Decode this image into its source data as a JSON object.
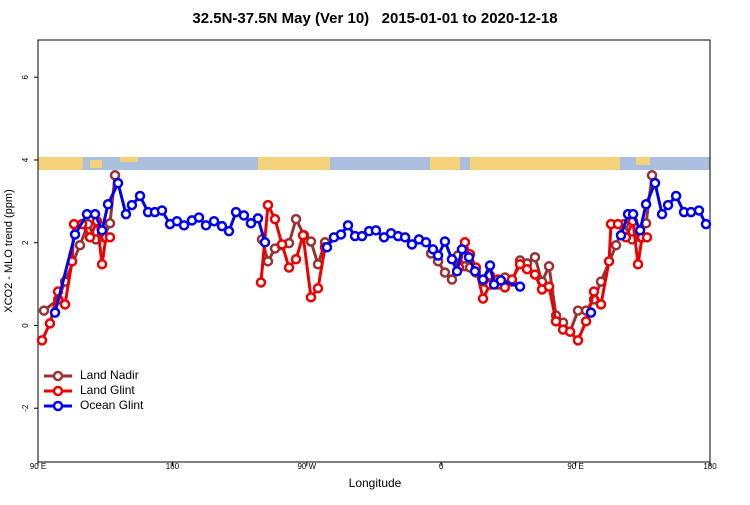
{
  "chart_data": {
    "type": "line",
    "title": "32.5N-37.5N May (Ver 10)   2015-01-01 to 2020-12-18",
    "xlabel": "Longitude",
    "ylabel": "XCO2 - MLO trend (ppm)",
    "xlim": [
      90,
      540
    ],
    "xticks": [
      {
        "value": 90,
        "label": "90 E"
      },
      180,
      {
        "value": 270,
        "label": "90 W"
      },
      {
        "value": 360,
        "label": "0"
      },
      {
        "value": 450,
        "label": "90 E"
      },
      {
        "value": 540,
        "label": "180"
      }
    ],
    "ylim": [
      -3.3,
      6.9
    ],
    "yticks": [
      -2,
      0,
      2,
      4,
      6
    ],
    "legend": "bottom-left",
    "series": [
      {
        "name": "Land Nadir",
        "color": "#993333",
        "x": [
          94.0,
          103.4,
          108.1,
          118.1,
          123.5,
          128.8,
          134.2,
          138.2,
          141.6,
          190,
          240.0,
          244.0,
          248.7,
          253.4,
          258.1,
          262.8,
          268.2,
          272.8,
          277.5,
          282.2,
          320,
          353.2,
          357.9,
          362.5,
          367.2,
          371.2,
          375.9,
          379.3,
          383.3,
          388.7,
          392.7,
          398.0,
          402.7,
          407.4,
          412.8,
          417.5,
          422.8,
          427.5,
          432.2,
          436.9,
          441.6,
          446.3,
          451.6,
          457.0,
          462.3,
          467.0,
          477.1,
          482.4,
          487.8,
          493.2,
          497.2,
          501.2
        ],
        "values": [
          0.36,
          0.63,
          1.06,
          1.94,
          2.45,
          2.08,
          2.13,
          2.47,
          3.63,
          null,
          2.08,
          1.55,
          1.86,
          1.94,
          1.99,
          2.57,
          2.18,
          2.03,
          1.48,
          2.01,
          null,
          1.74,
          1.55,
          1.28,
          1.11,
          1.69,
          1.43,
          1.4,
          1.28,
          1.06,
          1.21,
          0.99,
          1.16,
          1.06,
          1.57,
          1.5,
          1.65,
          1.06,
          1.43,
          0.24,
          0.07,
          -0.15,
          0.36,
          0.36,
          0.63,
          1.06,
          1.94,
          2.45,
          2.08,
          2.13,
          2.47,
          3.63
        ]
      },
      {
        "name": "Land Glint",
        "color": "#ee0000",
        "x": [
          92.7,
          98.0,
          103.4,
          108.1,
          112.8,
          114.1,
          119.5,
          124.8,
          129.5,
          132.9,
          135.5,
          138.2,
          190,
          239.3,
          244.0,
          248.7,
          253.4,
          258.1,
          262.8,
          267.5,
          272.8,
          277.5,
          282.2,
          330,
          371.9,
          375.9,
          379.3,
          383.3,
          388.0,
          392.7,
          398.0,
          402.7,
          407.4,
          412.8,
          417.5,
          422.8,
          427.5,
          432.2,
          436.9,
          441.6,
          446.3,
          451.6,
          457.0,
          462.3,
          467.0,
          472.4,
          473.7,
          478.4,
          483.7,
          488.4,
          491.8,
          494.5,
          497.8
        ],
        "values": [
          -0.36,
          0.05,
          0.82,
          0.51,
          1.55,
          2.45,
          2.45,
          2.13,
          2.52,
          1.48,
          2.13,
          2.13,
          null,
          1.04,
          2.91,
          2.57,
          1.96,
          1.4,
          1.6,
          2.18,
          0.68,
          0.9,
          1.89,
          null,
          1.4,
          2.01,
          1.72,
          1.4,
          0.65,
          0.99,
          1.11,
          0.92,
          1.11,
          1.48,
          1.36,
          1.23,
          0.87,
          0.94,
          0.1,
          -0.1,
          -0.15,
          -0.36,
          0.1,
          0.82,
          0.51,
          1.55,
          2.45,
          2.45,
          2.13,
          2.52,
          1.48,
          2.13,
          2.13
        ]
      },
      {
        "name": "Ocean Glint",
        "color": "#0000ee",
        "x": [
          101.4,
          114.8,
          122.8,
          128.2,
          132.9,
          136.9,
          143.6,
          148.9,
          152.9,
          158.3,
          163.7,
          168.3,
          173.0,
          178.4,
          183.1,
          187.8,
          193.1,
          197.8,
          202.5,
          207.9,
          213.2,
          217.9,
          222.6,
          227.9,
          232.6,
          237.3,
          242.0,
          260,
          283.5,
          288.2,
          292.9,
          297.6,
          302.3,
          307.0,
          311.7,
          316.3,
          321.7,
          326.4,
          331.1,
          335.8,
          340.4,
          345.1,
          349.8,
          354.5,
          357.9,
          362.5,
          367.2,
          370.6,
          373.9,
          378.6,
          382.6,
          388.0,
          392.7,
          395.4,
          400.0,
          412.8,
          440,
          460.3,
          470,
          480.4,
          485.1,
          488.5,
          493.2,
          497.2,
          503.2,
          507.9,
          511.9,
          517.3,
          522.6,
          527.3,
          532.6,
          537.3
        ],
        "values": [
          0.31,
          2.2,
          2.69,
          2.69,
          2.3,
          2.93,
          3.44,
          2.69,
          2.91,
          3.13,
          2.74,
          2.74,
          2.78,
          2.45,
          2.52,
          2.42,
          2.54,
          2.61,
          2.42,
          2.52,
          2.4,
          2.28,
          2.74,
          2.66,
          2.47,
          2.59,
          2.01,
          null,
          1.89,
          2.13,
          2.2,
          2.42,
          2.16,
          2.16,
          2.28,
          2.3,
          2.13,
          2.23,
          2.16,
          2.13,
          1.96,
          2.08,
          2.01,
          1.84,
          1.69,
          2.03,
          1.6,
          1.31,
          1.84,
          1.65,
          1.31,
          1.11,
          1.45,
          0.99,
          1.09,
          0.94,
          null,
          0.31,
          null,
          2.18,
          2.69,
          2.69,
          2.3,
          2.93,
          3.44,
          2.69,
          2.91,
          3.13,
          2.74,
          2.74,
          2.78,
          2.45
        ]
      }
    ]
  }
}
